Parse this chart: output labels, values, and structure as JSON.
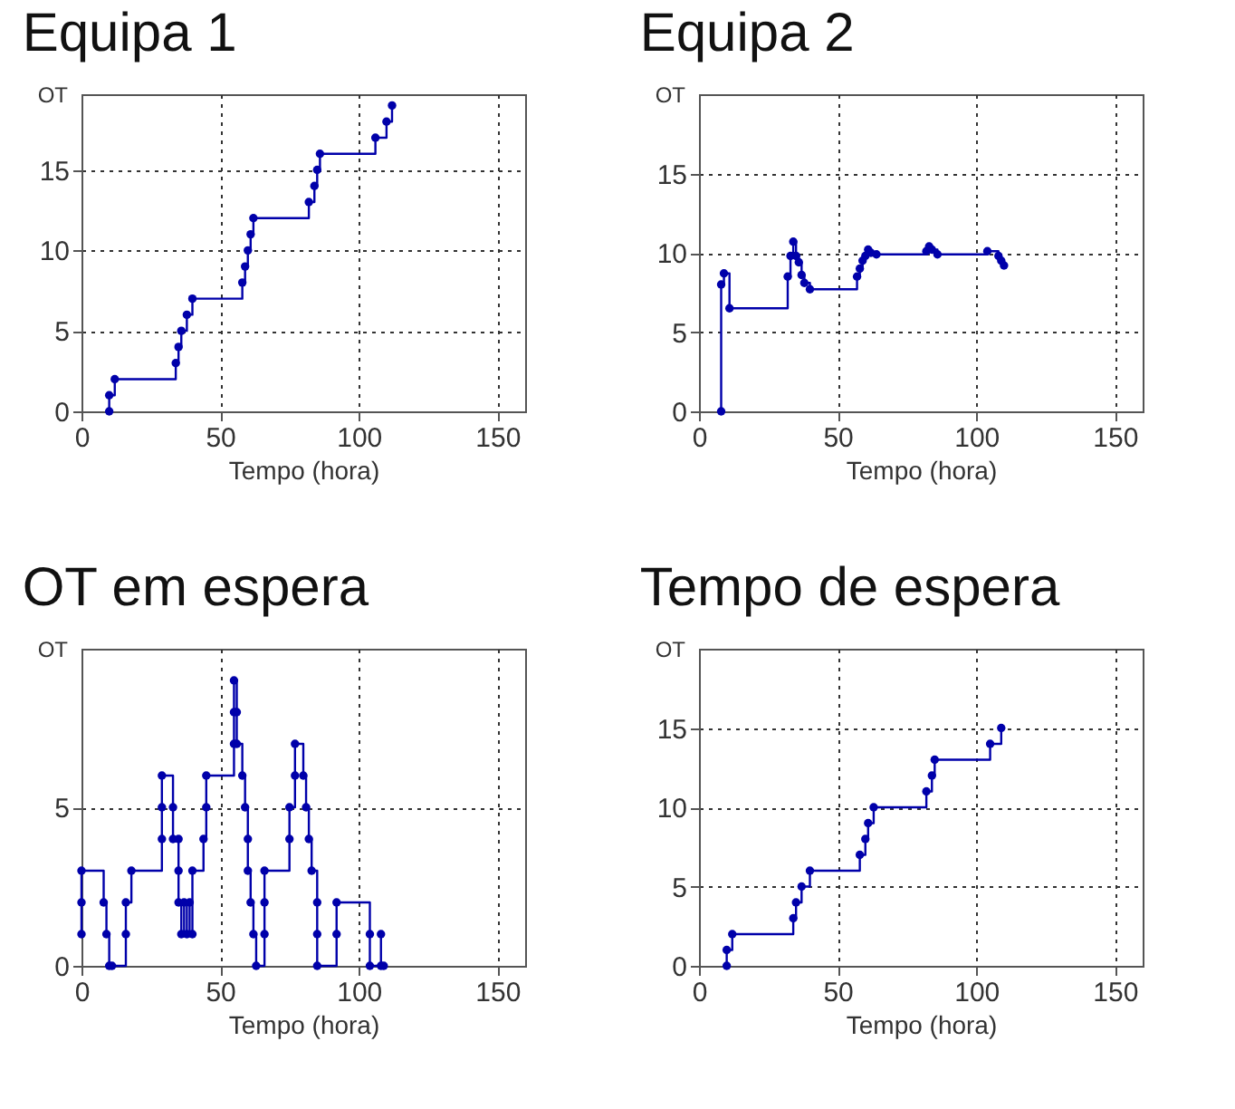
{
  "chart_data": [
    {
      "type": "step",
      "title": "Equipa 1",
      "xlabel": "Tempo (hora)",
      "ylabel": "OT",
      "xlim": [
        0,
        160
      ],
      "ylim": [
        0,
        19.7
      ],
      "xticks": [
        0,
        50,
        100,
        150
      ],
      "yticks": [
        0,
        5,
        10,
        15
      ],
      "grid": true,
      "marker": "circle",
      "x": [
        10,
        10,
        12,
        34,
        35,
        36,
        38,
        40,
        58,
        59,
        60,
        61,
        62,
        82,
        84,
        85,
        86,
        106,
        110,
        112
      ],
      "series": [
        {
          "color": "#0000aa",
          "values": [
            0,
            1,
            2,
            3,
            4,
            5,
            6,
            7,
            8,
            9,
            10,
            11,
            12,
            13,
            14,
            15,
            16,
            17,
            18,
            19
          ]
        }
      ]
    },
    {
      "type": "step",
      "title": "Equipa 2",
      "xlabel": "Tempo (hora)",
      "ylabel": "OT",
      "xlim": [
        0,
        160
      ],
      "ylim": [
        0,
        20
      ],
      "xticks": [
        0,
        50,
        100,
        150
      ],
      "yticks": [
        0,
        5,
        10,
        15
      ],
      "grid": true,
      "marker": "circle",
      "x": [
        8,
        8,
        9,
        11,
        32,
        33,
        34,
        35,
        36,
        37,
        38,
        40,
        57,
        58,
        59,
        60,
        61,
        62,
        64,
        82,
        83,
        84,
        86,
        104,
        108,
        109,
        110
      ],
      "series": [
        {
          "color": "#0000aa",
          "values": [
            0,
            8,
            8.7,
            6.5,
            8.5,
            9.8,
            10.7,
            9.8,
            9.4,
            8.6,
            8.1,
            7.7,
            8.5,
            9,
            9.5,
            9.8,
            10.2,
            10,
            9.9,
            10.1,
            10.4,
            10.2,
            9.9,
            10.1,
            9.8,
            9.5,
            9.2
          ]
        }
      ]
    },
    {
      "type": "step",
      "title": "OT em espera",
      "xlabel": "Tempo (hora)",
      "ylabel": "OT",
      "xlim": [
        0,
        160
      ],
      "ylim": [
        0,
        10
      ],
      "xticks": [
        0,
        50,
        100,
        150
      ],
      "yticks": [
        0,
        5
      ],
      "grid": true,
      "marker": "circle",
      "x": [
        0,
        0,
        0,
        8,
        9,
        10,
        11,
        16,
        16,
        18,
        29,
        29,
        29,
        33,
        33,
        35,
        35,
        35,
        36,
        37,
        38,
        39,
        40,
        40,
        44,
        45,
        45,
        55,
        55,
        55,
        56,
        56,
        58,
        59,
        60,
        60,
        61,
        62,
        63,
        66,
        66,
        66,
        75,
        75,
        77,
        77,
        80,
        81,
        82,
        83,
        85,
        85,
        85,
        92,
        92,
        104,
        104,
        108,
        108,
        109
      ],
      "series": [
        {
          "color": "#0000aa",
          "values": [
            1,
            2,
            3,
            2,
            1,
            0,
            0,
            1,
            2,
            3,
            4,
            5,
            6,
            5,
            4,
            4,
            3,
            2,
            1,
            2,
            1,
            2,
            1,
            3,
            4,
            5,
            6,
            7,
            8,
            9,
            8,
            7,
            6,
            5,
            4,
            3,
            2,
            1,
            0,
            1,
            2,
            3,
            4,
            5,
            6,
            7,
            6,
            5,
            4,
            3,
            2,
            1,
            0,
            1,
            2,
            1,
            0,
            1,
            0,
            0
          ]
        }
      ]
    },
    {
      "type": "step",
      "title": "Tempo de espera",
      "xlabel": "Tempo (hora)",
      "ylabel": "OT",
      "xlim": [
        0,
        160
      ],
      "ylim": [
        0,
        20
      ],
      "xticks": [
        0,
        50,
        100,
        150
      ],
      "yticks": [
        0,
        5,
        10,
        15
      ],
      "grid": true,
      "marker": "circle",
      "x": [
        10,
        10,
        12,
        34,
        35,
        37,
        40,
        58,
        60,
        61,
        63,
        82,
        84,
        85,
        105,
        109
      ],
      "series": [
        {
          "color": "#0000aa",
          "values": [
            0,
            1,
            2,
            3,
            4,
            5,
            6,
            7,
            8,
            9,
            10,
            11,
            12,
            13,
            14,
            15
          ]
        }
      ]
    }
  ]
}
